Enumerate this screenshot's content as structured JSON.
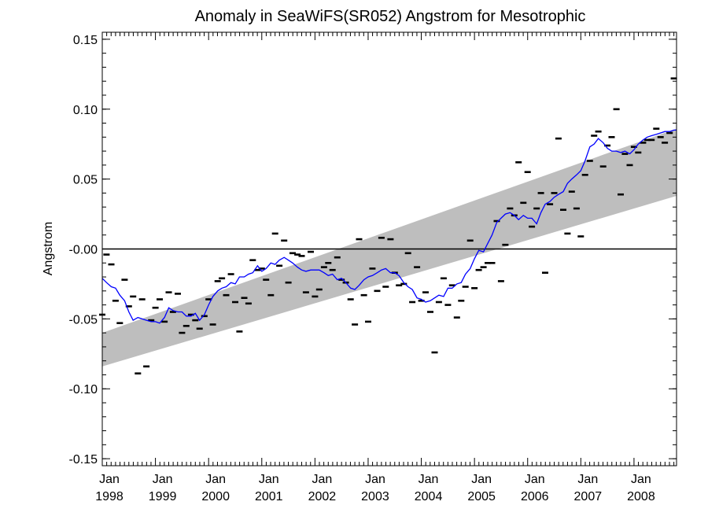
{
  "chart_data": {
    "type": "scatter",
    "title": "Anomaly in SeaWiFS(SR052) Angstrom for Mesotrophic",
    "xlabel": "",
    "ylabel": "Angstrom",
    "xlim": [
      1998.0,
      2008.8
    ],
    "ylim": [
      -0.155,
      0.155
    ],
    "y_ticks": [
      {
        "value": 0.15,
        "label": "0.15"
      },
      {
        "value": 0.1,
        "label": "0.10"
      },
      {
        "value": 0.05,
        "label": "0.05"
      },
      {
        "value": 0.0,
        "label": "-0.00"
      },
      {
        "value": -0.05,
        "label": "-0.05"
      },
      {
        "value": -0.1,
        "label": "-0.10"
      },
      {
        "value": -0.15,
        "label": "-0.15"
      }
    ],
    "x_ticks": [
      {
        "value": 1998,
        "month": "Jan",
        "year": "1998"
      },
      {
        "value": 1999,
        "month": "Jan",
        "year": "1999"
      },
      {
        "value": 2000,
        "month": "Jan",
        "year": "2000"
      },
      {
        "value": 2001,
        "month": "Jan",
        "year": "2001"
      },
      {
        "value": 2002,
        "month": "Jan",
        "year": "2002"
      },
      {
        "value": 2003,
        "month": "Jan",
        "year": "2003"
      },
      {
        "value": 2004,
        "month": "Jan",
        "year": "2004"
      },
      {
        "value": 2005,
        "month": "Jan",
        "year": "2005"
      },
      {
        "value": 2006,
        "month": "Jan",
        "year": "2006"
      },
      {
        "value": 2007,
        "month": "Jan",
        "year": "2007"
      },
      {
        "value": 2008,
        "month": "Jan",
        "year": "2008"
      }
    ],
    "zero_line": 0.0,
    "trend_band": {
      "color": "#bebebe",
      "start": {
        "x": 1998.0,
        "lower": -0.084,
        "upper": -0.06
      },
      "end": {
        "x": 2008.8,
        "lower": 0.038,
        "upper": 0.086
      }
    },
    "monthly_points": {
      "color": "#000000",
      "marker": "dash",
      "x": [
        1998.0,
        1998.08,
        1998.17,
        1998.25,
        1998.33,
        1998.42,
        1998.5,
        1998.58,
        1998.67,
        1998.75,
        1998.83,
        1998.92,
        1999.0,
        1999.08,
        1999.17,
        1999.25,
        1999.33,
        1999.42,
        1999.5,
        1999.58,
        1999.67,
        1999.75,
        1999.83,
        1999.92,
        2000.0,
        2000.08,
        2000.17,
        2000.25,
        2000.33,
        2000.42,
        2000.5,
        2000.58,
        2000.67,
        2000.75,
        2000.83,
        2000.92,
        2001.0,
        2001.08,
        2001.17,
        2001.25,
        2001.33,
        2001.42,
        2001.5,
        2001.58,
        2001.67,
        2001.75,
        2001.83,
        2001.92,
        2002.0,
        2002.08,
        2002.17,
        2002.25,
        2002.33,
        2002.42,
        2002.5,
        2002.58,
        2002.67,
        2002.75,
        2002.83,
        2002.92,
        2003.0,
        2003.08,
        2003.17,
        2003.25,
        2003.33,
        2003.42,
        2003.5,
        2003.58,
        2003.67,
        2003.75,
        2003.83,
        2003.92,
        2004.0,
        2004.08,
        2004.17,
        2004.25,
        2004.33,
        2004.42,
        2004.5,
        2004.58,
        2004.67,
        2004.75,
        2004.83,
        2004.92,
        2005.0,
        2005.08,
        2005.17,
        2005.25,
        2005.33,
        2005.42,
        2005.5,
        2005.58,
        2005.67,
        2005.75,
        2005.83,
        2005.92,
        2006.0,
        2006.08,
        2006.17,
        2006.25,
        2006.33,
        2006.42,
        2006.5,
        2006.58,
        2006.67,
        2006.75,
        2006.83,
        2006.92,
        2007.0,
        2007.08,
        2007.17,
        2007.25,
        2007.33,
        2007.42,
        2007.5,
        2007.58,
        2007.67,
        2007.75,
        2007.83,
        2007.92,
        2008.0,
        2008.08,
        2008.17,
        2008.25,
        2008.33,
        2008.42,
        2008.5,
        2008.58,
        2008.67,
        2008.75
      ],
      "y": [
        -0.047,
        -0.004,
        -0.011,
        -0.037,
        -0.053,
        -0.022,
        -0.041,
        -0.034,
        -0.089,
        -0.036,
        -0.084,
        -0.051,
        -0.042,
        -0.036,
        -0.052,
        -0.031,
        -0.045,
        -0.032,
        -0.06,
        -0.055,
        -0.047,
        -0.051,
        -0.057,
        -0.048,
        -0.036,
        -0.054,
        -0.023,
        -0.021,
        -0.033,
        -0.018,
        -0.038,
        -0.059,
        -0.035,
        -0.039,
        -0.008,
        -0.015,
        -0.014,
        -0.022,
        -0.033,
        0.011,
        -0.012,
        0.006,
        -0.024,
        -0.003,
        -0.004,
        -0.005,
        -0.031,
        -0.002,
        -0.034,
        -0.029,
        -0.013,
        -0.01,
        -0.015,
        -0.006,
        -0.022,
        -0.024,
        -0.036,
        -0.054,
        0.007,
        -0.033,
        -0.052,
        -0.014,
        -0.03,
        0.008,
        -0.027,
        0.007,
        -0.017,
        -0.026,
        -0.025,
        -0.003,
        -0.038,
        -0.013,
        -0.037,
        -0.031,
        -0.045,
        -0.074,
        -0.038,
        -0.021,
        -0.04,
        -0.026,
        -0.049,
        -0.037,
        -0.027,
        0.006,
        -0.028,
        -0.015,
        -0.013,
        -0.01,
        -0.01,
        0.02,
        -0.023,
        0.003,
        0.029,
        0.024,
        0.062,
        0.033,
        0.055,
        0.016,
        0.029,
        0.04,
        -0.017,
        0.032,
        0.04,
        0.079,
        0.028,
        0.011,
        0.041,
        0.029,
        0.009,
        0.053,
        0.063,
        0.081,
        0.084,
        0.059,
        0.074,
        0.08,
        0.1,
        0.039,
        0.068,
        0.06,
        0.073,
        0.069,
        0.076,
        0.078,
        0.078,
        0.086,
        0.08,
        0.076,
        0.083,
        0.122
      ]
    },
    "running_mean": {
      "color": "#0000ff",
      "x": [
        1998.0,
        1998.08,
        1998.17,
        1998.25,
        1998.33,
        1998.42,
        1998.5,
        1998.58,
        1998.67,
        1998.75,
        1998.83,
        1998.92,
        1999.0,
        1999.08,
        1999.17,
        1999.25,
        1999.33,
        1999.42,
        1999.5,
        1999.58,
        1999.67,
        1999.75,
        1999.83,
        1999.92,
        2000.0,
        2000.08,
        2000.17,
        2000.25,
        2000.33,
        2000.42,
        2000.5,
        2000.58,
        2000.67,
        2000.75,
        2000.83,
        2000.92,
        2001.0,
        2001.08,
        2001.17,
        2001.25,
        2001.33,
        2001.42,
        2001.5,
        2001.58,
        2001.67,
        2001.75,
        2001.83,
        2001.92,
        2002.0,
        2002.08,
        2002.17,
        2002.25,
        2002.33,
        2002.42,
        2002.5,
        2002.58,
        2002.67,
        2002.75,
        2002.83,
        2002.92,
        2003.0,
        2003.08,
        2003.17,
        2003.25,
        2003.33,
        2003.42,
        2003.5,
        2003.58,
        2003.67,
        2003.75,
        2003.83,
        2003.92,
        2004.0,
        2004.08,
        2004.17,
        2004.25,
        2004.33,
        2004.42,
        2004.5,
        2004.58,
        2004.67,
        2004.75,
        2004.83,
        2004.92,
        2005.0,
        2005.08,
        2005.17,
        2005.25,
        2005.33,
        2005.42,
        2005.5,
        2005.58,
        2005.67,
        2005.75,
        2005.83,
        2005.92,
        2006.0,
        2006.08,
        2006.17,
        2006.25,
        2006.33,
        2006.42,
        2006.5,
        2006.58,
        2006.67,
        2006.75,
        2006.83,
        2006.92,
        2007.0,
        2007.08,
        2007.17,
        2007.25,
        2007.33,
        2007.42,
        2007.5,
        2007.58,
        2007.67,
        2007.75,
        2007.83,
        2007.92,
        2008.0,
        2008.08,
        2008.17,
        2008.25,
        2008.33,
        2008.42,
        2008.5,
        2008.58,
        2008.67,
        2008.75,
        2008.8
      ],
      "y": [
        -0.021,
        -0.024,
        -0.027,
        -0.028,
        -0.033,
        -0.037,
        -0.045,
        -0.051,
        -0.049,
        -0.05,
        -0.051,
        -0.052,
        -0.052,
        -0.053,
        -0.049,
        -0.042,
        -0.044,
        -0.045,
        -0.045,
        -0.048,
        -0.048,
        -0.046,
        -0.051,
        -0.047,
        -0.04,
        -0.034,
        -0.03,
        -0.028,
        -0.027,
        -0.024,
        -0.025,
        -0.02,
        -0.02,
        -0.018,
        -0.017,
        -0.012,
        -0.016,
        -0.014,
        -0.01,
        -0.011,
        -0.008,
        -0.006,
        -0.008,
        -0.01,
        -0.013,
        -0.015,
        -0.016,
        -0.015,
        -0.015,
        -0.015,
        -0.017,
        -0.019,
        -0.018,
        -0.022,
        -0.021,
        -0.024,
        -0.028,
        -0.029,
        -0.026,
        -0.022,
        -0.02,
        -0.019,
        -0.017,
        -0.015,
        -0.014,
        -0.017,
        -0.017,
        -0.019,
        -0.024,
        -0.027,
        -0.029,
        -0.035,
        -0.036,
        -0.038,
        -0.037,
        -0.035,
        -0.033,
        -0.034,
        -0.028,
        -0.028,
        -0.025,
        -0.024,
        -0.018,
        -0.014,
        -0.007,
        -0.001,
        -0.002,
        0.004,
        0.01,
        0.019,
        0.022,
        0.025,
        0.026,
        0.024,
        0.021,
        0.024,
        0.022,
        0.022,
        0.018,
        0.026,
        0.032,
        0.034,
        0.037,
        0.039,
        0.041,
        0.047,
        0.05,
        0.053,
        0.056,
        0.063,
        0.073,
        0.075,
        0.079,
        0.076,
        0.072,
        0.07,
        0.07,
        0.069,
        0.07,
        0.068,
        0.071,
        0.075,
        0.078,
        0.08,
        0.081,
        0.082,
        0.083,
        0.084,
        0.084,
        0.085,
        0.085
      ]
    }
  }
}
